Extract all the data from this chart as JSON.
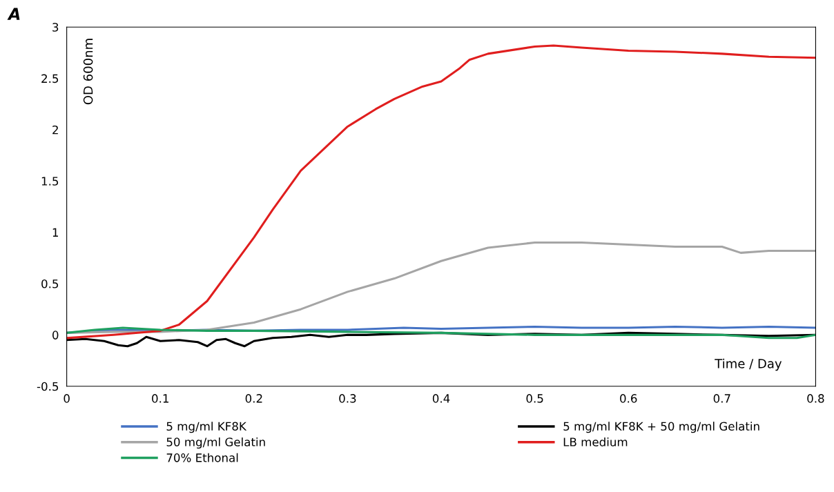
{
  "chart_data": {
    "type": "line",
    "title": "A",
    "xlabel": "Time / Day",
    "ylabel": "OD 600nm",
    "xlim": [
      0,
      0.8
    ],
    "xticks": [
      0,
      0.1,
      0.2,
      0.3,
      0.4,
      0.5,
      0.6,
      0.7,
      0.8
    ],
    "ylim": [
      -0.5,
      3
    ],
    "yticks": [
      -0.5,
      0,
      0.5,
      1,
      1.5,
      2,
      2.5,
      3
    ],
    "grid": false,
    "legend": "bottom",
    "marker": "none",
    "line_style": "solid",
    "series": [
      {
        "name": "5 mg/ml KF8K",
        "color": "#4472c4",
        "x": [
          0,
          0.05,
          0.1,
          0.15,
          0.2,
          0.25,
          0.3,
          0.33,
          0.36,
          0.4,
          0.45,
          0.5,
          0.55,
          0.6,
          0.65,
          0.7,
          0.75,
          0.8
        ],
        "values": [
          0.02,
          0.05,
          0.04,
          0.05,
          0.04,
          0.05,
          0.05,
          0.06,
          0.07,
          0.06,
          0.07,
          0.08,
          0.07,
          0.07,
          0.08,
          0.07,
          0.08,
          0.07
        ]
      },
      {
        "name": "5 mg/ml KF8K + 50 mg/ml Gelatin",
        "color": "#000000",
        "x": [
          0,
          0.02,
          0.04,
          0.055,
          0.065,
          0.075,
          0.085,
          0.1,
          0.12,
          0.14,
          0.15,
          0.16,
          0.17,
          0.18,
          0.19,
          0.2,
          0.22,
          0.24,
          0.26,
          0.28,
          0.3,
          0.32,
          0.35,
          0.4,
          0.45,
          0.5,
          0.55,
          0.6,
          0.65,
          0.7,
          0.75,
          0.8
        ],
        "values": [
          -0.05,
          -0.04,
          -0.06,
          -0.1,
          -0.11,
          -0.08,
          -0.02,
          -0.06,
          -0.05,
          -0.07,
          -0.11,
          -0.05,
          -0.04,
          -0.08,
          -0.11,
          -0.06,
          -0.03,
          -0.02,
          0.0,
          -0.02,
          0.0,
          0.0,
          0.01,
          0.02,
          0.0,
          0.01,
          0.0,
          0.02,
          0.01,
          0.0,
          -0.01,
          0.0
        ]
      },
      {
        "name": "50 mg/ml Gelatin",
        "color": "#a5a5a5",
        "x": [
          0,
          0.05,
          0.1,
          0.15,
          0.2,
          0.25,
          0.3,
          0.35,
          0.4,
          0.45,
          0.5,
          0.55,
          0.6,
          0.65,
          0.7,
          0.72,
          0.75,
          0.8
        ],
        "values": [
          0.02,
          0.03,
          0.03,
          0.05,
          0.12,
          0.25,
          0.42,
          0.55,
          0.72,
          0.85,
          0.9,
          0.9,
          0.88,
          0.86,
          0.86,
          0.8,
          0.82,
          0.82
        ]
      },
      {
        "name": "LB medium",
        "color": "#e01e1e",
        "x": [
          0,
          0.05,
          0.1,
          0.12,
          0.15,
          0.2,
          0.22,
          0.25,
          0.3,
          0.33,
          0.35,
          0.38,
          0.4,
          0.42,
          0.43,
          0.45,
          0.5,
          0.52,
          0.55,
          0.6,
          0.65,
          0.7,
          0.75,
          0.8
        ],
        "values": [
          -0.03,
          0.0,
          0.04,
          0.1,
          0.33,
          0.95,
          1.22,
          1.6,
          2.03,
          2.2,
          2.3,
          2.42,
          2.47,
          2.6,
          2.68,
          2.74,
          2.81,
          2.82,
          2.8,
          2.77,
          2.76,
          2.74,
          2.71,
          2.7
        ]
      },
      {
        "name": "70% Ethonal",
        "color": "#1fa060",
        "x": [
          0,
          0.03,
          0.06,
          0.1,
          0.15,
          0.2,
          0.3,
          0.4,
          0.5,
          0.6,
          0.7,
          0.75,
          0.78,
          0.8
        ],
        "values": [
          0.02,
          0.05,
          0.07,
          0.05,
          0.04,
          0.04,
          0.03,
          0.02,
          0.0,
          0.0,
          0.0,
          -0.03,
          -0.03,
          0.0
        ]
      }
    ]
  }
}
